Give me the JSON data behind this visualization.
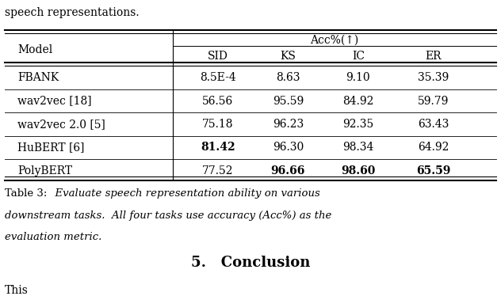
{
  "top_text": "speech representations.",
  "header_col": "Model",
  "header_group": "Acc%(↑)",
  "subheaders": [
    "SID",
    "KS",
    "IC",
    "ER"
  ],
  "rows": [
    {
      "model": "FBANK",
      "values": [
        "8.5E-4",
        "8.63",
        "9.10",
        "35.39"
      ],
      "bold": [
        false,
        false,
        false,
        false
      ]
    },
    {
      "model": "wav2vec [18]",
      "values": [
        "56.56",
        "95.59",
        "84.92",
        "59.79"
      ],
      "bold": [
        false,
        false,
        false,
        false
      ]
    },
    {
      "model": "wav2vec 2.0 [5]",
      "values": [
        "75.18",
        "96.23",
        "92.35",
        "63.43"
      ],
      "bold": [
        false,
        false,
        false,
        false
      ]
    },
    {
      "model": "HuBERT [6]",
      "values": [
        "81.42",
        "96.30",
        "98.34",
        "64.92"
      ],
      "bold": [
        true,
        false,
        false,
        false
      ]
    },
    {
      "model": "PolyBERT",
      "values": [
        "77.52",
        "96.66",
        "98.60",
        "65.59"
      ],
      "bold": [
        false,
        true,
        true,
        true
      ]
    }
  ],
  "caption_prefix": "Table 3:",
  "caption_italic": "  Evaluate speech representation ability on various\ndownstream tasks.  All four tasks use accuracy (Acc%) as the\nevaluation metric.",
  "section_title": "5.   Conclusion",
  "bottom_text": "This",
  "bg_color": "#ffffff",
  "text_color": "#000000",
  "font_size": 10,
  "caption_font_size": 9.5,
  "section_font_size": 13
}
